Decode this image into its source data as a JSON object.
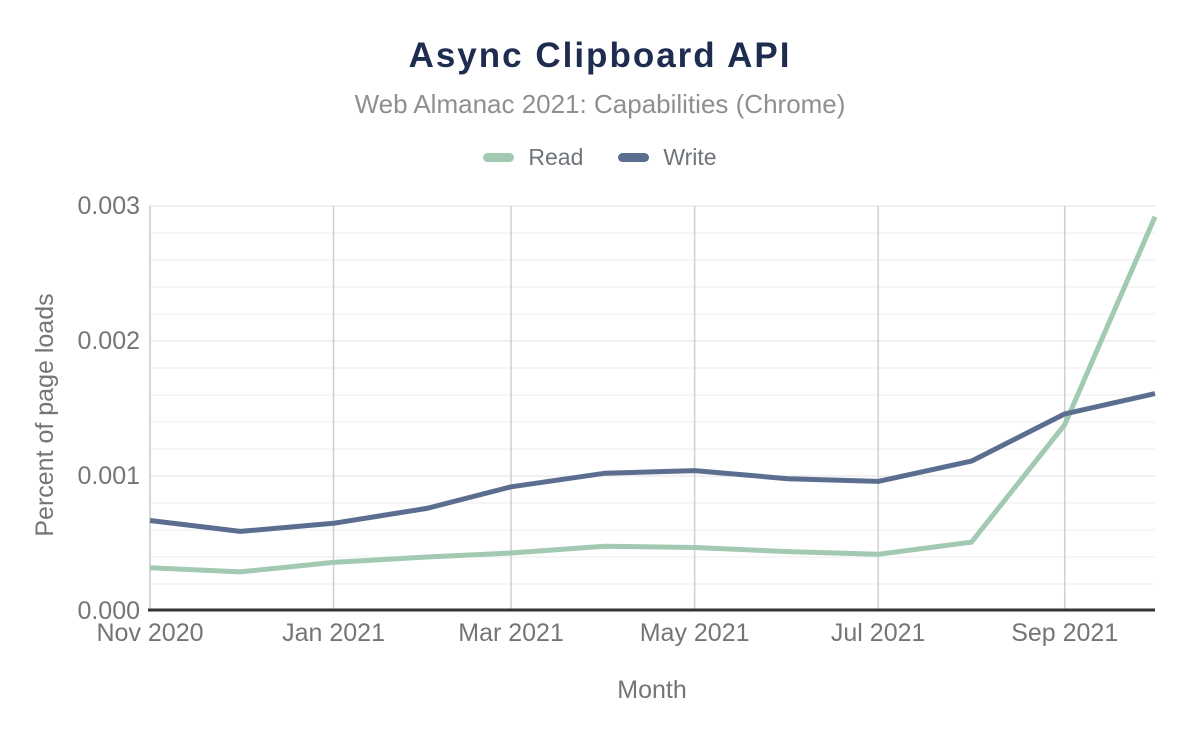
{
  "chart_data": {
    "type": "line",
    "title": "Async Clipboard API",
    "subtitle": "Web Almanac 2021: Capabilities (Chrome)",
    "xlabel": "Month",
    "ylabel": "Percent of page loads",
    "x": [
      "Nov 2020",
      "Dec 2020",
      "Jan 2021",
      "Feb 2021",
      "Mar 2021",
      "Apr 2021",
      "May 2021",
      "Jun 2021",
      "Jul 2021",
      "Aug 2021",
      "Sep 2021",
      "Oct 2021"
    ],
    "x_tick_indices": [
      0,
      2,
      4,
      6,
      8,
      10
    ],
    "x_tick_labels": [
      "Nov 2020",
      "Jan 2021",
      "Mar 2021",
      "May 2021",
      "Jul 2021",
      "Sep 2021"
    ],
    "y_ticks": [
      "0.000",
      "0.001",
      "0.002",
      "0.003"
    ],
    "ylim": [
      0,
      0.003
    ],
    "y_major_step": 0.001,
    "y_minor_step": 0.0002,
    "grid": "on",
    "legend_position": "top",
    "series": [
      {
        "name": "Read",
        "color": "#a2c9b1",
        "values": [
          0.00032,
          0.00029,
          0.00036,
          0.0004,
          0.00043,
          0.00048,
          0.00047,
          0.00044,
          0.00042,
          0.00051,
          0.00138,
          0.00292
        ]
      },
      {
        "name": "Write",
        "color": "#5b6e8f",
        "values": [
          0.00067,
          0.00059,
          0.00065,
          0.00076,
          0.00092,
          0.00102,
          0.00104,
          0.00098,
          0.00096,
          0.00111,
          0.00146,
          0.00161
        ]
      }
    ],
    "colors": {
      "title": "#1e2d4f",
      "subtitle": "#8f8f8f",
      "axis_text": "#757575",
      "legend_text": "#6f747a",
      "grid_minor": "#ededed",
      "grid_major": "#e2e2e2",
      "grid_vertical": "#cfcfcf",
      "y_axis_line": "#c9c9c9",
      "x_axis_line": "#333333",
      "background": "#ffffff"
    }
  }
}
